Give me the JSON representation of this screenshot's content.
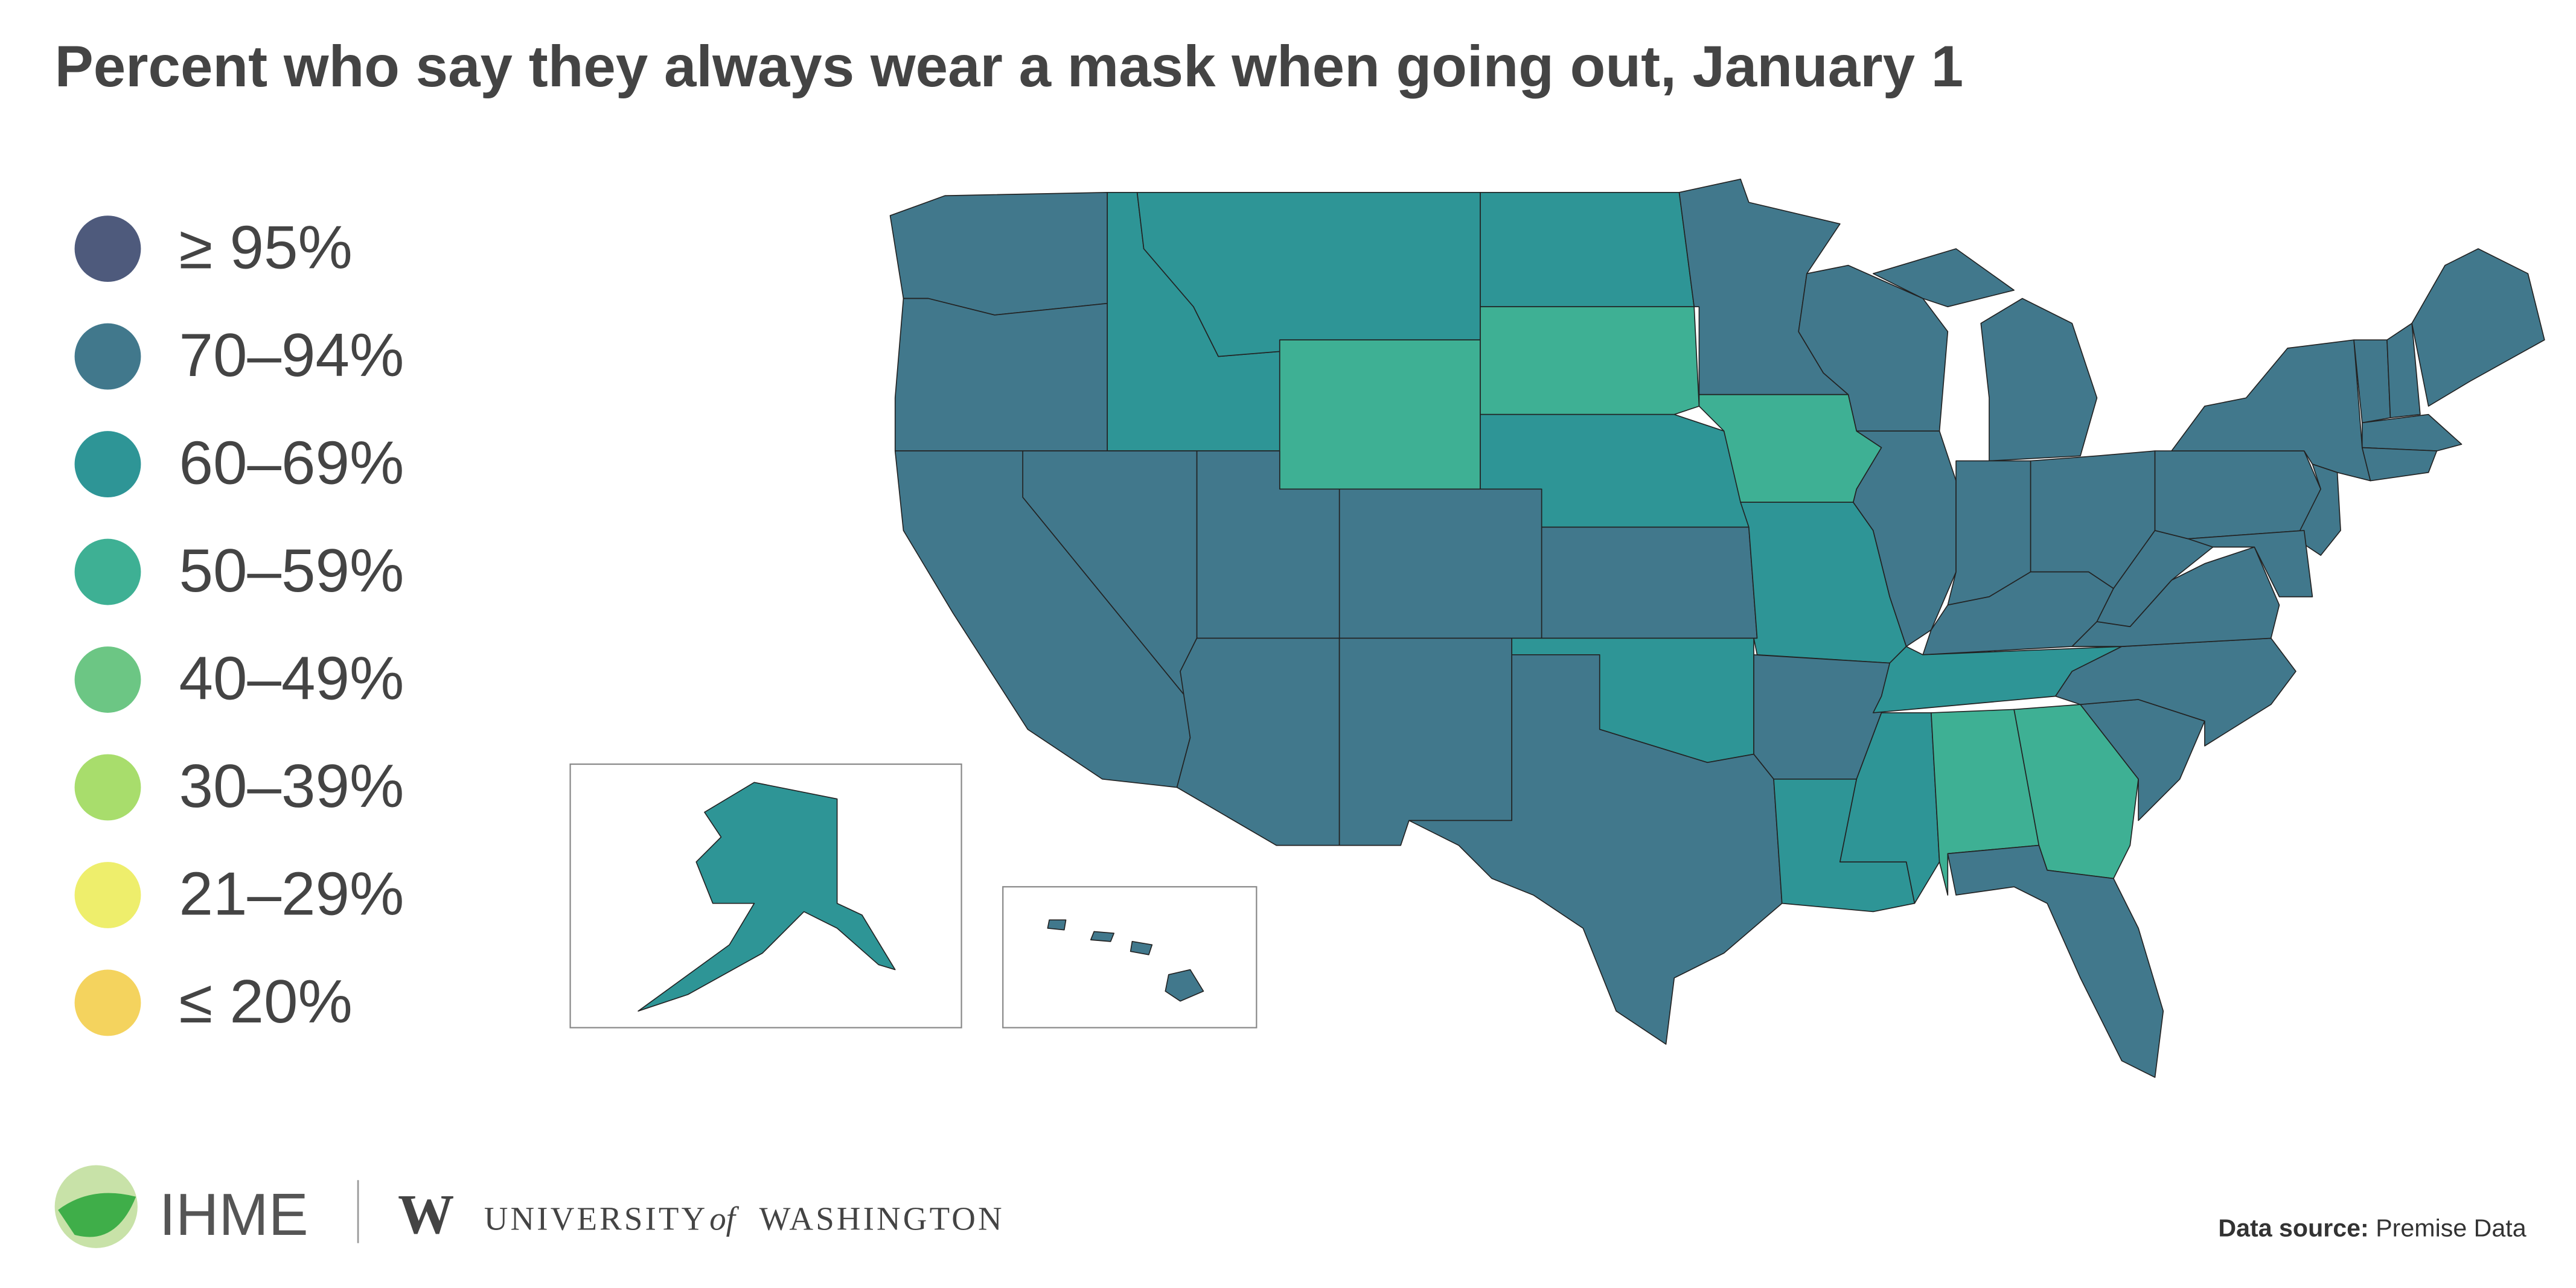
{
  "title": "Percent who say they always wear a mask when going out, January 1",
  "legend": [
    {
      "label": "≥ 95%",
      "color": "#4e5a7c"
    },
    {
      "label": "70–94%",
      "color": "#41788c"
    },
    {
      "label": "60–69%",
      "color": "#2e9596"
    },
    {
      "label": "50–59%",
      "color": "#3eb094"
    },
    {
      "label": "40–49%",
      "color": "#6cc684"
    },
    {
      "label": "30–39%",
      "color": "#a8dd6c"
    },
    {
      "label": "21–29%",
      "color": "#eeee6c"
    },
    {
      "label": "≤ 20%",
      "color": "#f4d35e"
    }
  ],
  "footer": {
    "ihme": "IHME",
    "uw_mark": "W",
    "university": "UNIVERSITY",
    "of": "of",
    "washington": "WASHINGTON",
    "source_label": "Data source:",
    "source": "Premise Data"
  }
}
